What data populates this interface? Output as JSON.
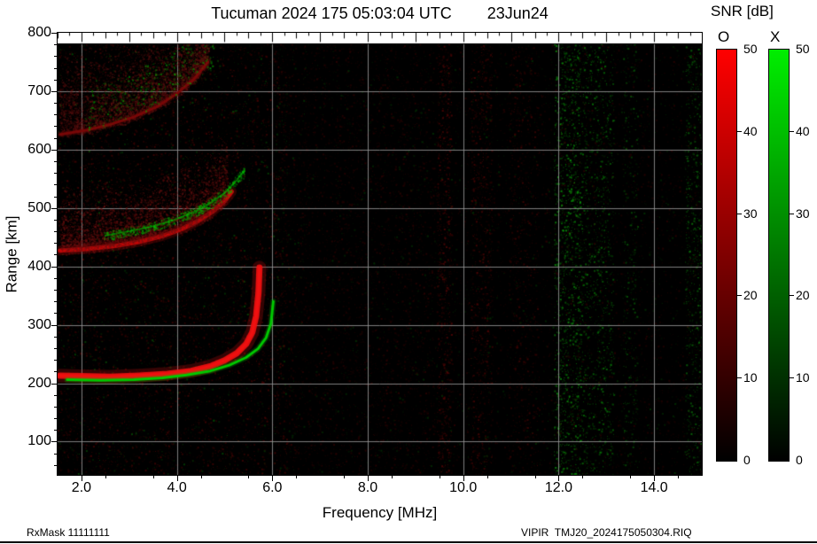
{
  "header": {
    "title": "Tucuman 2024 175 05:03:04 UTC",
    "date": "23Jun24"
  },
  "footer": {
    "left": "RxMask 11111111",
    "right": "VIPIR  TMJ20_2024175050304.RIQ"
  },
  "chart_data": {
    "type": "heatmap",
    "title": "Tucuman 2024 175 05:03:04 UTC 23Jun24",
    "xlabel": "Frequency [MHz]",
    "ylabel": "Range [km]",
    "xlim": [
      1.5,
      15.0
    ],
    "ylim": [
      43,
      800
    ],
    "background": "#000000",
    "grid_color": "#949494",
    "grid": true,
    "xticks": [
      {
        "v": 2.0,
        "label": "2.0"
      },
      {
        "v": 4.0,
        "label": "4.0"
      },
      {
        "v": 6.0,
        "label": "6.0"
      },
      {
        "v": 8.0,
        "label": "8.0"
      },
      {
        "v": 10.0,
        "label": "10.0"
      },
      {
        "v": 12.0,
        "label": "12.0"
      },
      {
        "v": 14.0,
        "label": "14.0"
      }
    ],
    "yticks": [
      {
        "v": 100,
        "label": "100"
      },
      {
        "v": 200,
        "label": "200"
      },
      {
        "v": 300,
        "label": "300"
      },
      {
        "v": 400,
        "label": "400"
      },
      {
        "v": 500,
        "label": "500"
      },
      {
        "v": 600,
        "label": "600"
      },
      {
        "v": 700,
        "label": "700"
      },
      {
        "v": 800,
        "label": "800"
      }
    ],
    "colorbar": {
      "title": "SNR [dB]",
      "min": 0,
      "max": 50,
      "ticks": [
        0,
        10,
        20,
        30,
        40,
        50
      ],
      "bars": [
        {
          "label": "O",
          "color_max": "#ff0000"
        },
        {
          "label": "X",
          "color_max": "#00ee00"
        }
      ]
    },
    "series": [
      {
        "name": "1st-hop O-mode trace",
        "mode": "O",
        "style": "sharp",
        "color": "#f01010",
        "width": 7,
        "points": [
          [
            1.55,
            213
          ],
          [
            2.0,
            212
          ],
          [
            2.6,
            211
          ],
          [
            3.2,
            213
          ],
          [
            3.8,
            216
          ],
          [
            4.3,
            221
          ],
          [
            4.7,
            229
          ],
          [
            5.0,
            239
          ],
          [
            5.25,
            251
          ],
          [
            5.45,
            267
          ],
          [
            5.58,
            287
          ],
          [
            5.66,
            315
          ],
          [
            5.71,
            355
          ],
          [
            5.73,
            398
          ]
        ]
      },
      {
        "name": "1st-hop X-mode trace",
        "mode": "X",
        "style": "sharp",
        "color": "#00cc00",
        "width": 3,
        "points": [
          [
            1.7,
            206
          ],
          [
            2.4,
            205
          ],
          [
            3.1,
            206
          ],
          [
            3.7,
            209
          ],
          [
            4.2,
            214
          ],
          [
            4.7,
            221
          ],
          [
            5.1,
            231
          ],
          [
            5.45,
            244
          ],
          [
            5.7,
            259
          ],
          [
            5.87,
            278
          ],
          [
            5.97,
            302
          ],
          [
            6.02,
            340
          ]
        ]
      },
      {
        "name": "2nd-hop O-mode trace",
        "mode": "O",
        "style": "sharp",
        "color": "#cc0808",
        "width": 5,
        "points": [
          [
            1.55,
            427
          ],
          [
            2.1,
            430
          ],
          [
            2.7,
            435
          ],
          [
            3.2,
            442
          ],
          [
            3.7,
            452
          ],
          [
            4.1,
            464
          ],
          [
            4.45,
            478
          ],
          [
            4.75,
            494
          ],
          [
            5.0,
            512
          ],
          [
            5.15,
            528
          ]
        ]
      },
      {
        "name": "2nd-hop O-mode spread cloud",
        "mode": "O",
        "style": "diffuse",
        "color": "#701010",
        "count": 5200,
        "spread": 78,
        "points": [
          [
            1.55,
            432
          ],
          [
            2.3,
            436
          ],
          [
            3.0,
            444
          ],
          [
            3.6,
            455
          ],
          [
            4.2,
            472
          ],
          [
            4.7,
            494
          ],
          [
            5.05,
            520
          ]
        ]
      },
      {
        "name": "2nd-hop X-mode trace",
        "mode": "X",
        "style": "speckle",
        "color": "#00bb00",
        "width": 2,
        "count": 750,
        "spread": 5,
        "points": [
          [
            2.5,
            453
          ],
          [
            3.0,
            460
          ],
          [
            3.5,
            469
          ],
          [
            3.95,
            480
          ],
          [
            4.35,
            493
          ],
          [
            4.7,
            508
          ],
          [
            5.0,
            526
          ],
          [
            5.25,
            547
          ],
          [
            5.4,
            563
          ]
        ]
      },
      {
        "name": "3rd-hop O-mode spread cloud",
        "mode": "O",
        "style": "diffuse",
        "color": "#601010",
        "count": 5600,
        "spread": 100,
        "points": [
          [
            1.55,
            630
          ],
          [
            2.1,
            637
          ],
          [
            2.6,
            647
          ],
          [
            3.1,
            660
          ],
          [
            3.6,
            678
          ],
          [
            4.0,
            700
          ],
          [
            4.35,
            724
          ],
          [
            4.65,
            754
          ]
        ]
      },
      {
        "name": "3rd-hop O-mode lower edge",
        "mode": "O",
        "style": "sharp",
        "color": "#7a0808",
        "width": 3,
        "points": [
          [
            1.55,
            626
          ],
          [
            2.1,
            633
          ],
          [
            2.6,
            643
          ],
          [
            3.1,
            656
          ],
          [
            3.6,
            674
          ],
          [
            4.0,
            696
          ],
          [
            4.35,
            720
          ],
          [
            4.65,
            750
          ]
        ]
      },
      {
        "name": "3rd-hop X-mode speckle",
        "mode": "X",
        "style": "speckle",
        "color": "#00a800",
        "count": 500,
        "spread": 26,
        "points": [
          [
            2.1,
            668
          ],
          [
            2.7,
            684
          ],
          [
            3.3,
            704
          ],
          [
            3.9,
            730
          ],
          [
            4.4,
            757
          ],
          [
            4.75,
            778
          ]
        ]
      }
    ],
    "noise": {
      "base": {
        "red_color": "#3f0000",
        "red_count": 7000,
        "green_color": "#004000",
        "green_count": 2600
      },
      "stripes": [
        {
          "f0": 1.5,
          "f1": 6.3,
          "color": "#4a0404",
          "count": 6000
        },
        {
          "f0": 1.5,
          "f1": 6.3,
          "color": "#045004",
          "count": 900
        },
        {
          "f0": 6.3,
          "f1": 9.4,
          "color": "#330303",
          "count": 2200
        },
        {
          "f0": 9.45,
          "f1": 9.75,
          "color": "#5a0606",
          "count": 800
        },
        {
          "f0": 10.15,
          "f1": 10.6,
          "color": "#520505",
          "count": 900
        },
        {
          "f0": 10.95,
          "f1": 11.55,
          "color": "#470404",
          "count": 700
        },
        {
          "f0": 11.9,
          "f1": 12.45,
          "color": "#0a9a0a",
          "count": 1500
        },
        {
          "f0": 12.45,
          "f1": 13.15,
          "color": "#088008",
          "count": 1200
        },
        {
          "f0": 13.35,
          "f1": 13.65,
          "color": "#076007",
          "count": 350
        },
        {
          "f0": 14.65,
          "f1": 15.0,
          "color": "#0a7a0a",
          "count": 650
        },
        {
          "f0": 6.0,
          "f1": 15.0,
          "color": "#300000",
          "count": 2600
        },
        {
          "f0": 6.0,
          "f1": 15.0,
          "color": "#003800",
          "count": 900
        }
      ]
    }
  }
}
